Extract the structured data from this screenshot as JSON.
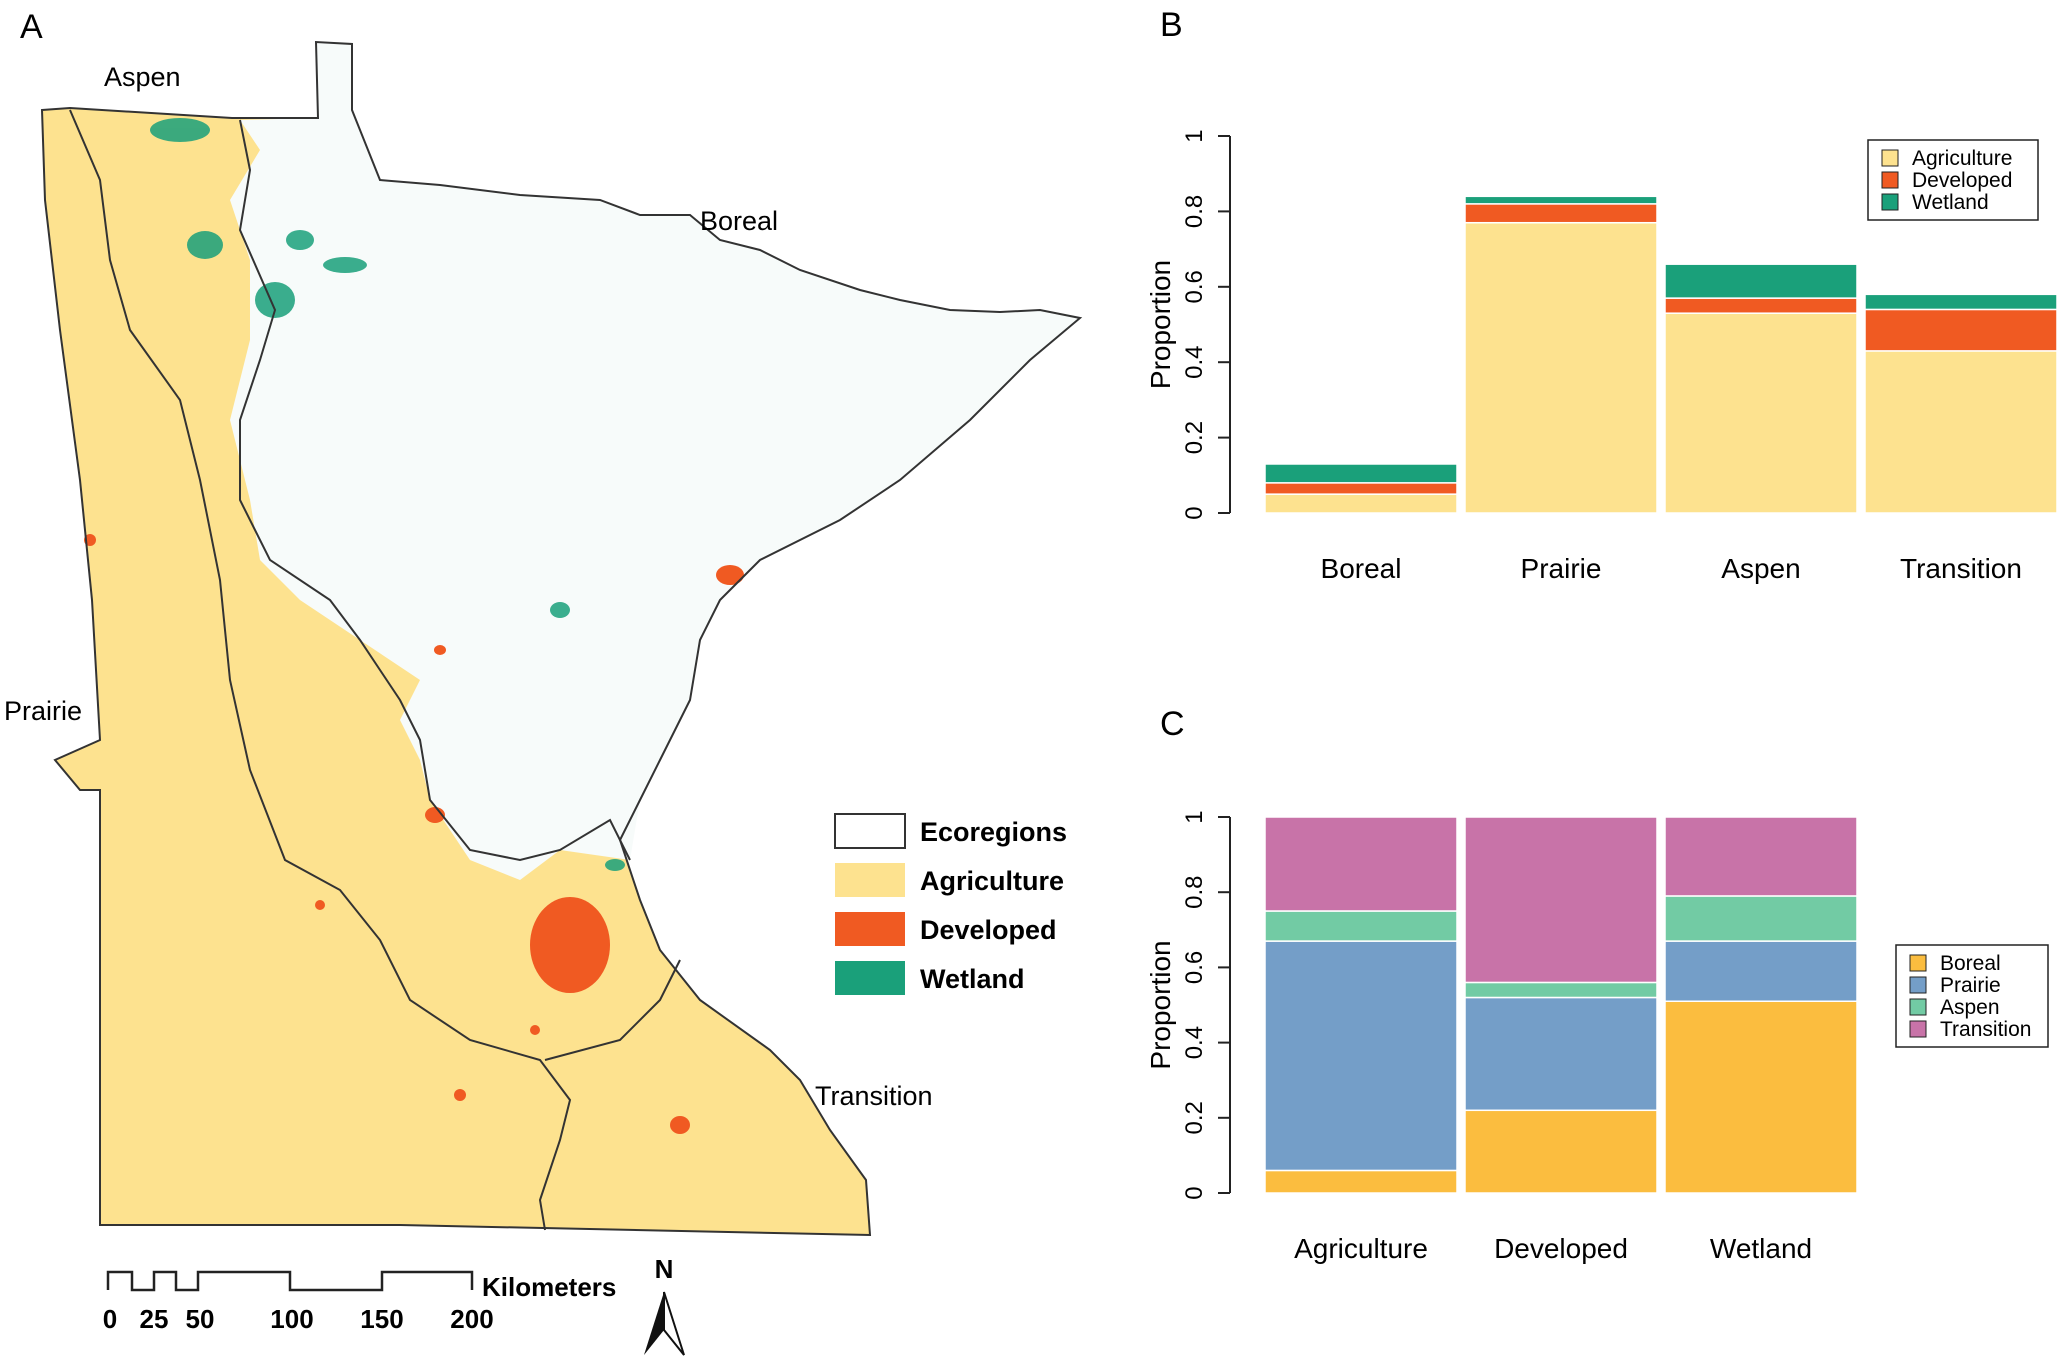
{
  "panels": {
    "a": "A",
    "b": "B",
    "c": "C"
  },
  "map": {
    "region_labels": {
      "aspen": "Aspen",
      "boreal": "Boreal",
      "prairie": "Prairie",
      "transition": "Transition"
    },
    "legend": [
      {
        "label": "Ecoregions",
        "color": "#ffffff"
      },
      {
        "label": "Agriculture",
        "color": "#fde28f"
      },
      {
        "label": "Developed",
        "color": "#f05a22"
      },
      {
        "label": "Wetland",
        "color": "#1aa07a"
      }
    ],
    "scale": {
      "ticks": [
        "0",
        "25",
        "50",
        "100",
        "150",
        "200"
      ],
      "unit": "Kilometers"
    },
    "north_label": "N"
  },
  "chart_data": [
    {
      "type": "bar",
      "stacked": true,
      "panel": "B",
      "categories": [
        "Boreal",
        "Prairie",
        "Aspen",
        "Transition"
      ],
      "series": [
        {
          "name": "Agriculture",
          "color": "#fde28f",
          "values": [
            0.05,
            0.77,
            0.53,
            0.43
          ]
        },
        {
          "name": "Developed",
          "color": "#f05a22",
          "values": [
            0.03,
            0.05,
            0.04,
            0.11
          ]
        },
        {
          "name": "Wetland",
          "color": "#1aa07a",
          "values": [
            0.05,
            0.02,
            0.09,
            0.04
          ]
        }
      ],
      "ylabel": "Proportion",
      "ylim": [
        0,
        1
      ],
      "yticks": [
        "0",
        "0.2",
        "0.4",
        "0.6",
        "0.8",
        "1"
      ],
      "legend_position": "top-right"
    },
    {
      "type": "bar",
      "stacked": true,
      "panel": "C",
      "categories": [
        "Agriculture",
        "Developed",
        "Wetland"
      ],
      "series": [
        {
          "name": "Boreal",
          "color": "#fbbd3f",
          "values": [
            0.06,
            0.22,
            0.51
          ]
        },
        {
          "name": "Prairie",
          "color": "#749ec8",
          "values": [
            0.61,
            0.3,
            0.16
          ]
        },
        {
          "name": "Aspen",
          "color": "#72cba4",
          "values": [
            0.08,
            0.04,
            0.12
          ]
        },
        {
          "name": "Transition",
          "color": "#c873a8",
          "values": [
            0.25,
            0.44,
            0.21
          ]
        }
      ],
      "ylabel": "Proportion",
      "ylim": [
        0,
        1
      ],
      "yticks": [
        "0",
        "0.2",
        "0.4",
        "0.6",
        "0.8",
        "1"
      ],
      "legend_position": "right"
    }
  ]
}
